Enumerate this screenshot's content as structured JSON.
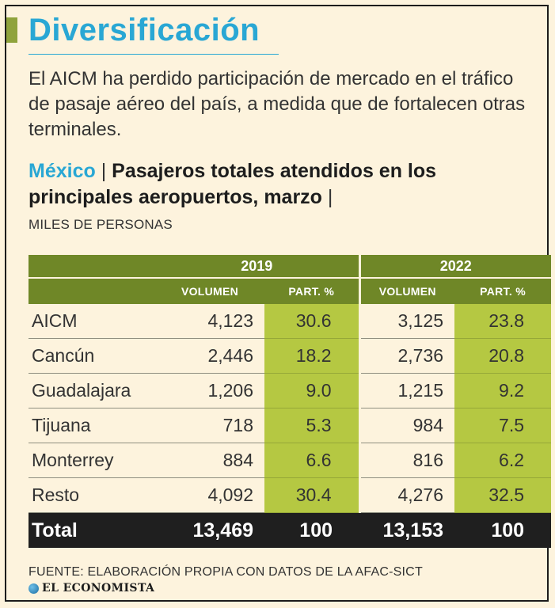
{
  "header": {
    "title": "Diversificación",
    "intro": "El AICM ha perdido participación de mercado en el tráfico de pasaje aéreo del país, a medida que de fortalecen otras terminales."
  },
  "chart_title": {
    "country": "México",
    "sep1": "|",
    "text": "Pasajeros totales atendidos en los principales aeropuertos, marzo",
    "sep2": "|"
  },
  "units": "MILES DE PERSONAS",
  "colors": {
    "title_blue": "#29a7d4",
    "header_green": "#6f8727",
    "pct_green": "#b5c842",
    "total_black": "#1f1f1f"
  },
  "chart_data": {
    "type": "table",
    "title": "Pasajeros totales atendidos en los principales aeropuertos, marzo",
    "units": "MILES DE PERSONAS",
    "years": [
      "2019",
      "2022"
    ],
    "columns": [
      "VOLUMEN",
      "PART. %"
    ],
    "rows": [
      {
        "name": "AICM",
        "v2019": "4,123",
        "p2019": "30.6",
        "v2022": "3,125",
        "p2022": "23.8"
      },
      {
        "name": "Cancún",
        "v2019": "2,446",
        "p2019": "18.2",
        "v2022": "2,736",
        "p2022": "20.8"
      },
      {
        "name": "Guadalajara",
        "v2019": "1,206",
        "p2019": "9.0",
        "v2022": "1,215",
        "p2022": "9.2"
      },
      {
        "name": "Tijuana",
        "v2019": "718",
        "p2019": "5.3",
        "v2022": "984",
        "p2022": "7.5"
      },
      {
        "name": "Monterrey",
        "v2019": "884",
        "p2019": "6.6",
        "v2022": "816",
        "p2022": "6.2"
      },
      {
        "name": "Resto",
        "v2019": "4,092",
        "p2019": "30.4",
        "v2022": "4,276",
        "p2022": "32.5"
      }
    ],
    "total": {
      "name": "Total",
      "v2019": "13,469",
      "p2019": "100",
      "v2022": "13,153",
      "p2022": "100"
    }
  },
  "footer": {
    "source": "FUENTE: ELABORACIÓN PROPIA CON DATOS DE LA AFAC-SICT",
    "brand": "EL ECONOMISTA"
  }
}
